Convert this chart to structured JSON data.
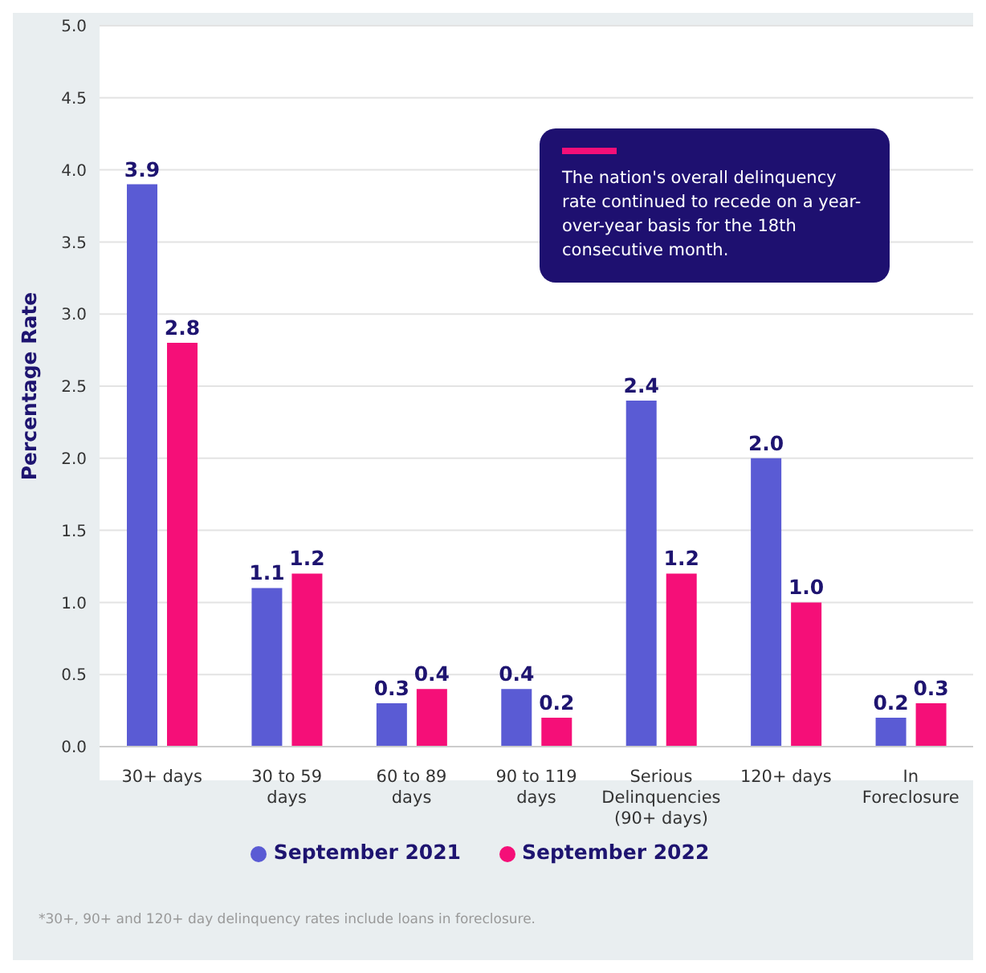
{
  "chart_data": {
    "type": "bar",
    "ylabel": "Percentage Rate",
    "categories": [
      "30+ days",
      "30 to 59 days",
      "60 to 89 days",
      "90 to 119 days",
      "Serious Delinquencies (90+ days)",
      "120+ days",
      "In Foreclosure"
    ],
    "series": [
      {
        "name": "September 2021",
        "color": "#5a5bd4",
        "values": [
          3.9,
          1.1,
          0.3,
          0.4,
          2.4,
          2.0,
          0.2
        ],
        "value_labels": [
          "3.9",
          "1.1",
          "0.3",
          "0.4",
          "2.4",
          "2.0",
          "0.2"
        ]
      },
      {
        "name": "September 2022",
        "color": "#f50f78",
        "values": [
          2.8,
          1.2,
          0.4,
          0.2,
          1.2,
          1.0,
          0.3
        ],
        "value_labels": [
          "2.8",
          "1.2",
          "0.4",
          "0.2",
          "1.2",
          "1.0",
          "0.3"
        ]
      }
    ],
    "ylim": [
      0,
      5
    ],
    "yticks": [
      {
        "value": 0,
        "label": "0.0"
      },
      0.5,
      {
        "value": 1,
        "label": "1.0"
      },
      1.5,
      {
        "value": 2,
        "label": "2.0"
      },
      2.5,
      {
        "value": 3,
        "label": "3.0"
      },
      3.5,
      {
        "value": 4,
        "label": "4.0"
      },
      4.5,
      {
        "value": 5,
        "label": "5.0"
      }
    ],
    "grid": "y",
    "legend": "bottom",
    "annotations": [
      {
        "text": "The nation's overall delinquency rate continued to recede on a year-over-year basis for the 18th consecutive month."
      },
      "*30+, 90+ and 120+ day delinquency rates include loans in foreclosure."
    ]
  }
}
